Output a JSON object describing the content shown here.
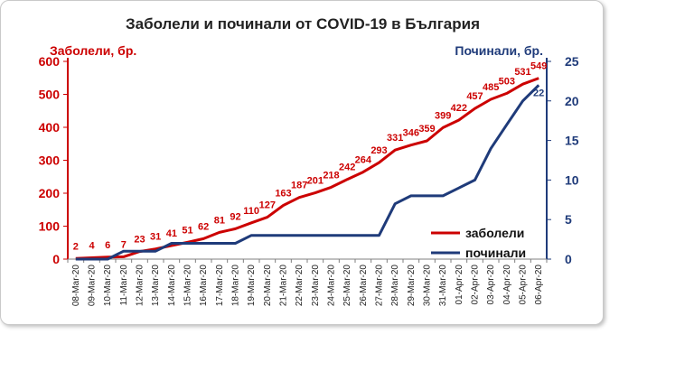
{
  "colors": {
    "infected": "#cc0000",
    "deaths": "#1f3b7a",
    "title": "#222222"
  },
  "chart_data": {
    "type": "line",
    "title": "Заболели и починали от COVID-19 в България",
    "ylabel_left": "Заболели, бр.",
    "ylabel_right": "Починали, бр.",
    "categories": [
      "08-Mar-20",
      "09-Mar-20",
      "10-Mar-20",
      "11-Mar-20",
      "12-Mar-20",
      "13-Mar-20",
      "14-Mar-20",
      "15-Mar-20",
      "16-Mar-20",
      "17-Mar-20",
      "18-Mar-20",
      "19-Mar-20",
      "20-Mar-20",
      "21-Mar-20",
      "22-Mar-20",
      "23-Mar-20",
      "24-Mar-20",
      "25-Mar-20",
      "26-Mar-20",
      "27-Mar-20",
      "28-Mar-20",
      "29-Mar-20",
      "30-Mar-20",
      "31-Mar-20",
      "01-Apr-20",
      "02-Apr-20",
      "03-Apr-20",
      "04-Apr-20",
      "05-Apr-20",
      "06-Apr-20"
    ],
    "y_left_ticks": [
      "0",
      "100",
      "200",
      "300",
      "400",
      "500",
      "600"
    ],
    "y_right_ticks": [
      "0",
      "5",
      "10",
      "15",
      "20",
      "25"
    ],
    "ylim_left": [
      0,
      600
    ],
    "ylim_right": [
      0,
      25
    ],
    "legend_position": "right",
    "series": [
      {
        "name": "заболели",
        "axis": "left",
        "color": "#cc0000",
        "values": [
          2,
          4,
          6,
          7,
          23,
          31,
          41,
          51,
          62,
          81,
          92,
          110,
          127,
          163,
          187,
          201,
          218,
          242,
          264,
          293,
          331,
          346,
          359,
          399,
          422,
          457,
          485,
          503,
          531,
          549
        ],
        "labels": [
          "2",
          "4",
          "6",
          "7",
          "23",
          "31",
          "41",
          "51",
          "62",
          "81",
          "92",
          "110",
          "127",
          "163",
          "187",
          "201",
          "218",
          "242",
          "264",
          "293",
          "331",
          "346",
          "359",
          "399",
          "422",
          "457",
          "485",
          "503",
          "531",
          "549"
        ]
      },
      {
        "name": "починали",
        "axis": "right",
        "color": "#1f3b7a",
        "values": [
          0,
          0,
          0,
          1,
          1,
          1,
          2,
          2,
          2,
          2,
          2,
          3,
          3,
          3,
          3,
          3,
          3,
          3,
          3,
          3,
          7,
          8,
          8,
          8,
          9,
          10,
          14,
          17,
          20,
          22
        ],
        "end_label": "22"
      }
    ]
  }
}
